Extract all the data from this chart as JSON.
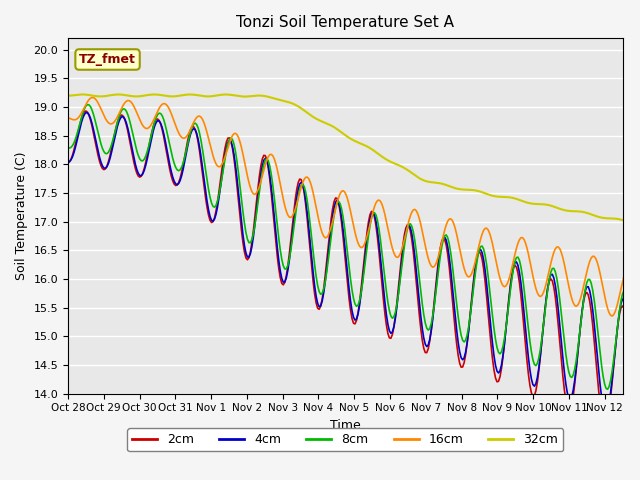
{
  "title": "Tonzi Soil Temperature Set A",
  "xlabel": "Time",
  "ylabel": "Soil Temperature (C)",
  "ylim": [
    14.0,
    20.2
  ],
  "annotation_text": "TZ_fmet",
  "legend_labels": [
    "2cm",
    "4cm",
    "8cm",
    "16cm",
    "32cm"
  ],
  "line_colors": [
    "#cc0000",
    "#0000cc",
    "#00bb00",
    "#ff8800",
    "#cccc00"
  ],
  "line_widths": [
    1.2,
    1.2,
    1.2,
    1.2,
    1.5
  ],
  "xtick_labels": [
    "Oct 28",
    "Oct 29",
    "Oct 30",
    "Oct 31",
    "Nov 1",
    "Nov 2",
    "Nov 3",
    "Nov 4",
    "Nov 5",
    "Nov 6",
    "Nov 7",
    "Nov 8",
    "Nov 9",
    "Nov 10",
    "Nov 11",
    "Nov 12"
  ],
  "grid_color": "#ffffff",
  "bg_color": "#e8e8e8",
  "fig_bg": "#f5f5f5"
}
